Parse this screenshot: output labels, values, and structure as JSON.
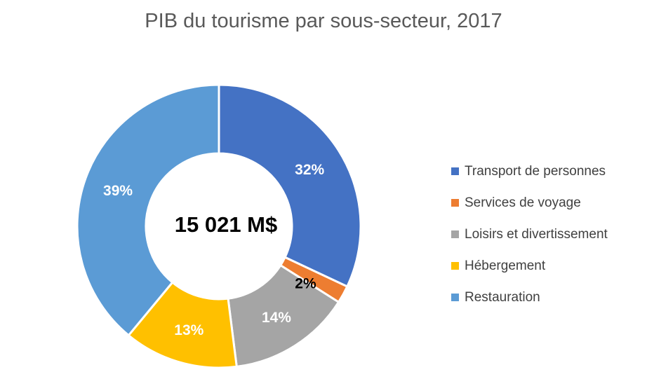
{
  "chart_data": {
    "type": "pie",
    "subtype": "donut",
    "title": "PIB du tourisme par sous-secteur, 2017",
    "center_label": "15 021 M$",
    "categories": [
      "Transport de personnes",
      "Services de voyage",
      "Loisirs et divertissement",
      "Hébergement",
      "Restauration"
    ],
    "values": [
      32,
      2,
      14,
      13,
      39
    ],
    "data_labels": [
      "32%",
      "2%",
      "14%",
      "13%",
      "39%"
    ],
    "colors": [
      "#4472C4",
      "#ED7D31",
      "#A5A5A5",
      "#FFC000",
      "#5B9BD5"
    ],
    "label_colors": [
      "#FFFFFF",
      "#000000",
      "#FFFFFF",
      "#FFFFFF",
      "#FFFFFF"
    ],
    "legend_position": "right"
  }
}
